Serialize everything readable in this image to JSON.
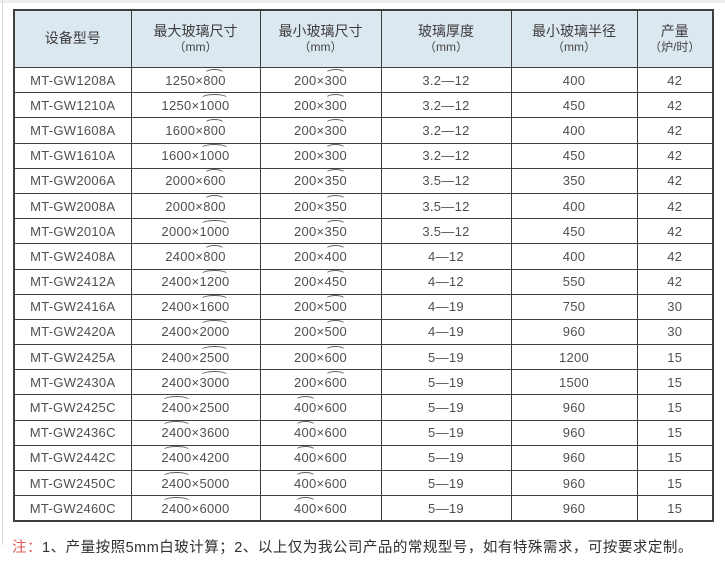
{
  "table": {
    "headers": [
      {
        "line1": "设备型号",
        "line2": ""
      },
      {
        "line1": "最大玻璃尺寸",
        "line2": "（mm）"
      },
      {
        "line1": "最小玻璃尺寸",
        "line2": "（mm）"
      },
      {
        "line1": "玻璃厚度",
        "line2": "（mm）"
      },
      {
        "line1": "最小玻璃半径",
        "line2": "（mm）"
      },
      {
        "line1": "产量",
        "line2": "（炉/时）"
      }
    ],
    "rows": [
      {
        "model": "MT-GW1208A",
        "max": {
          "before": "1250×",
          "arc": "800",
          "after": ""
        },
        "min": {
          "before": "200×",
          "arc": "300",
          "after": ""
        },
        "thickness": "3.2—12",
        "radius": "400",
        "output": "42"
      },
      {
        "model": "MT-GW1210A",
        "max": {
          "before": "1250×",
          "arc": "1000",
          "after": ""
        },
        "min": {
          "before": "200×",
          "arc": "300",
          "after": ""
        },
        "thickness": "3.2—12",
        "radius": "450",
        "output": "42"
      },
      {
        "model": "MT-GW1608A",
        "max": {
          "before": "1600×",
          "arc": "800",
          "after": ""
        },
        "min": {
          "before": "200×",
          "arc": "300",
          "after": ""
        },
        "thickness": "3.2—12",
        "radius": "400",
        "output": "42"
      },
      {
        "model": "MT-GW1610A",
        "max": {
          "before": "1600×",
          "arc": "1000",
          "after": ""
        },
        "min": {
          "before": "200×",
          "arc": "300",
          "after": ""
        },
        "thickness": "3.2—12",
        "radius": "450",
        "output": "42"
      },
      {
        "model": "MT-GW2006A",
        "max": {
          "before": "2000×",
          "arc": "600",
          "after": ""
        },
        "min": {
          "before": "200×",
          "arc": "350",
          "after": ""
        },
        "thickness": "3.5—12",
        "radius": "350",
        "output": "42"
      },
      {
        "model": "MT-GW2008A",
        "max": {
          "before": "2000×",
          "arc": "800",
          "after": ""
        },
        "min": {
          "before": "200×",
          "arc": "350",
          "after": ""
        },
        "thickness": "3.5—12",
        "radius": "400",
        "output": "42"
      },
      {
        "model": "MT-GW2010A",
        "max": {
          "before": "2000×",
          "arc": "1000",
          "after": ""
        },
        "min": {
          "before": "200×",
          "arc": "350",
          "after": ""
        },
        "thickness": "3.5—12",
        "radius": "450",
        "output": "42"
      },
      {
        "model": "MT-GW2408A",
        "max": {
          "before": "2400×",
          "arc": "800",
          "after": ""
        },
        "min": {
          "before": "200×",
          "arc": "400",
          "after": ""
        },
        "thickness": "4—12",
        "radius": "400",
        "output": "42"
      },
      {
        "model": "MT-GW2412A",
        "max": {
          "before": "2400×",
          "arc": "1200",
          "after": ""
        },
        "min": {
          "before": "200×",
          "arc": "450",
          "after": ""
        },
        "thickness": "4—12",
        "radius": "550",
        "output": "42"
      },
      {
        "model": "MT-GW2416A",
        "max": {
          "before": "2400×",
          "arc": "1600",
          "after": ""
        },
        "min": {
          "before": "200×",
          "arc": "500",
          "after": ""
        },
        "thickness": "4—19",
        "radius": "750",
        "output": "30"
      },
      {
        "model": "MT-GW2420A",
        "max": {
          "before": "2400×",
          "arc": "2000",
          "after": ""
        },
        "min": {
          "before": "200×",
          "arc": "500",
          "after": ""
        },
        "thickness": "4—19",
        "radius": "960",
        "output": "30"
      },
      {
        "model": "MT-GW2425A",
        "max": {
          "before": "2400×",
          "arc": "2500",
          "after": ""
        },
        "min": {
          "before": "200×",
          "arc": "600",
          "after": ""
        },
        "thickness": "5—19",
        "radius": "1200",
        "output": "15"
      },
      {
        "model": "MT-GW2430A",
        "max": {
          "before": "2400×",
          "arc": "3000",
          "after": ""
        },
        "min": {
          "before": "200×",
          "arc": "600",
          "after": ""
        },
        "thickness": "5—19",
        "radius": "1500",
        "output": "15"
      },
      {
        "model": "MT-GW2425C",
        "max": {
          "before": "",
          "arc": "2400",
          "after": "×2500"
        },
        "min": {
          "before": "",
          "arc": "400",
          "after": "×600"
        },
        "thickness": "5—19",
        "radius": "960",
        "output": "15"
      },
      {
        "model": "MT-GW2436C",
        "max": {
          "before": "",
          "arc": "2400",
          "after": "×3600"
        },
        "min": {
          "before": "",
          "arc": "400",
          "after": "×600"
        },
        "thickness": "5—19",
        "radius": "960",
        "output": "15"
      },
      {
        "model": "MT-GW2442C",
        "max": {
          "before": "",
          "arc": "2400",
          "after": "×4200"
        },
        "min": {
          "before": "",
          "arc": "400",
          "after": "×600"
        },
        "thickness": "5—19",
        "radius": "960",
        "output": "15"
      },
      {
        "model": "MT-GW2450C",
        "max": {
          "before": "",
          "arc": "2400",
          "after": "×5000"
        },
        "min": {
          "before": "",
          "arc": "400",
          "after": "×600"
        },
        "thickness": "5—19",
        "radius": "960",
        "output": "15"
      },
      {
        "model": "MT-GW2460C",
        "max": {
          "before": "",
          "arc": "2400",
          "after": "×6000"
        },
        "min": {
          "before": "",
          "arc": "400",
          "after": "×600"
        },
        "thickness": "5—19",
        "radius": "960",
        "output": "15"
      }
    ]
  },
  "note": {
    "label": "注：",
    "text": "1、产量按照5mm白玻计算；2、以上仅为我公司产品的常规型号，如有特殊需求，可按要求定制。"
  },
  "colors": {
    "header_bg": "#dce8f0",
    "border": "#3f3f3f",
    "text": "#4f4f4f",
    "note_red": "#e25555",
    "page_edge": "#d9d9d9"
  }
}
